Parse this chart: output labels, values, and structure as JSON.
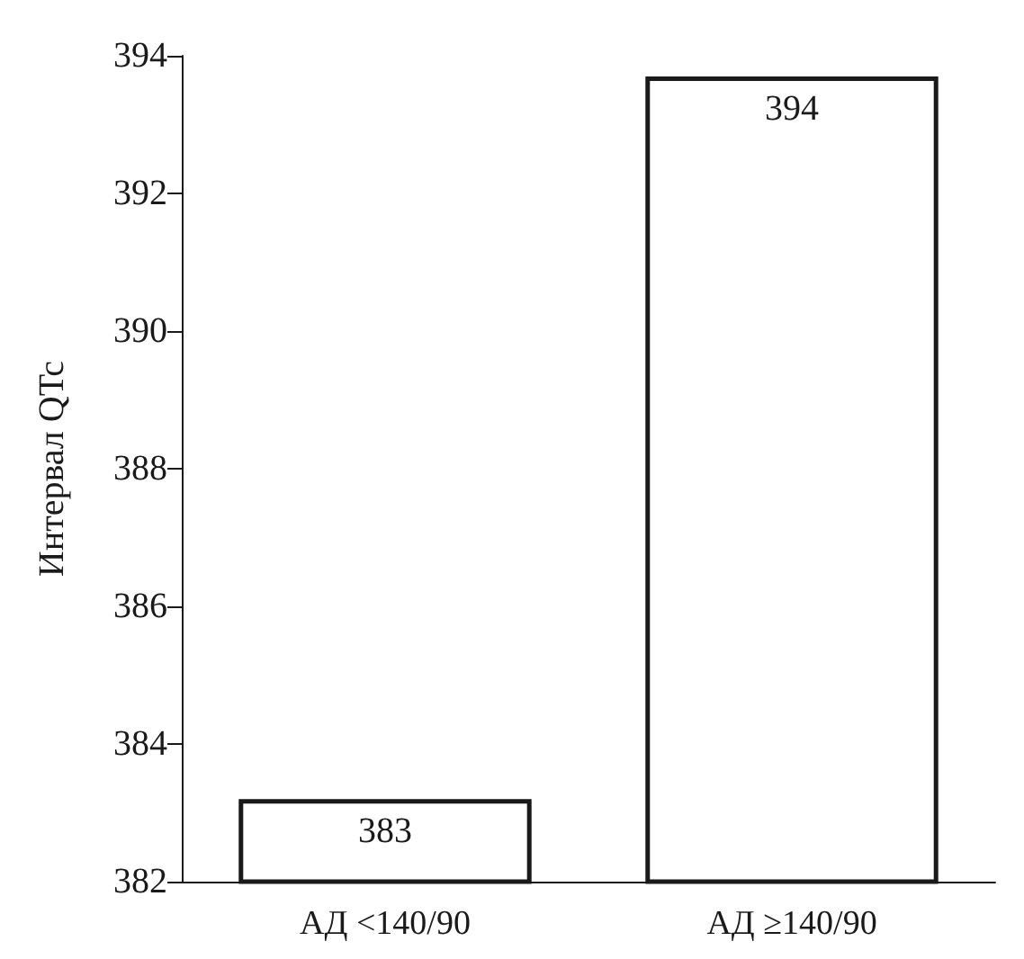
{
  "chart_data": {
    "type": "bar",
    "ylabel": "Интервал QTc",
    "categories": [
      "АД <140/90",
      "АД ≥140/90"
    ],
    "values": [
      383.2,
      393.7
    ],
    "value_labels": [
      "383",
      "394"
    ],
    "color": "#ffffff",
    "ylim": [
      382,
      394
    ],
    "yticks": [
      382,
      384,
      386,
      388,
      390,
      392,
      394
    ],
    "grid": false
  }
}
